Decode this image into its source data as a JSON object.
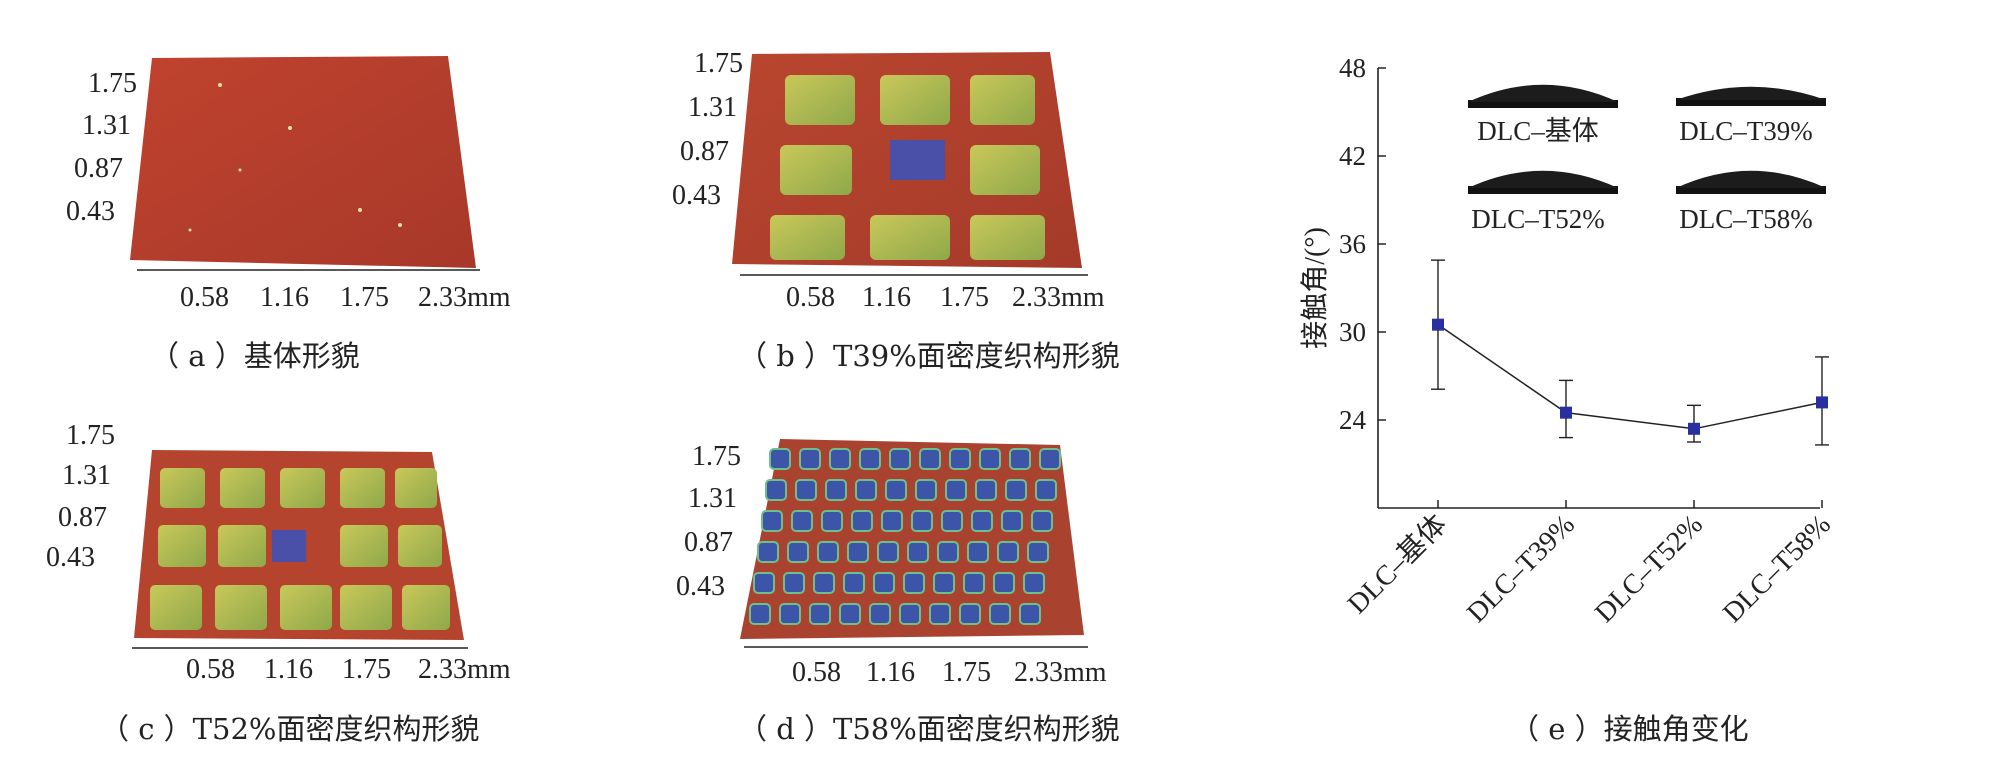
{
  "panels": [
    {
      "id": "a",
      "caption": "（ a ）基体形貌",
      "y_ticks": [
        "1.75",
        "1.31",
        "0.87",
        "0.43"
      ],
      "x_ticks": [
        "0.58",
        "1.16",
        "1.75",
        "2.33mm"
      ]
    },
    {
      "id": "b",
      "caption": "（ b ）T39%面密度织构形貌",
      "y_ticks": [
        "1.75",
        "1.31",
        "0.87",
        "0.43"
      ],
      "x_ticks": [
        "0.58",
        "1.16",
        "1.75",
        "2.33mm"
      ]
    },
    {
      "id": "c",
      "caption": "（ c ）T52%面密度织构形貌",
      "y_ticks": [
        "1.75",
        "1.31",
        "0.87",
        "0.43"
      ],
      "x_ticks": [
        "0.58",
        "1.16",
        "1.75",
        "2.33mm"
      ]
    },
    {
      "id": "d",
      "caption": "（ d ）T58%面密度织构形貌",
      "y_ticks": [
        "1.75",
        "1.31",
        "0.87",
        "0.43"
      ],
      "x_ticks": [
        "0.58",
        "1.16",
        "1.75",
        "2.33mm"
      ]
    }
  ],
  "colors": {
    "substrate": "#b8402f",
    "texture_low": "#9aa84a",
    "texture_high": "#4a4fa8",
    "marker": "#2a2fa0"
  },
  "chart_data": {
    "type": "line",
    "caption": "（ e ）接触角变化",
    "ylabel": "接触角/(°)",
    "ylim": [
      18,
      48
    ],
    "yticks": [
      24,
      30,
      36,
      42,
      48
    ],
    "categories": [
      "DLC–基体",
      "DLC–T39%",
      "DLC–T52%",
      "DLC–T58%"
    ],
    "values": [
      30.5,
      24.5,
      23.4,
      25.2
    ],
    "err_low": [
      26.1,
      22.8,
      22.5,
      22.3
    ],
    "err_high": [
      34.9,
      26.7,
      25.0,
      28.3
    ],
    "droplet_labels": [
      "DLC–基体",
      "DLC–T39%",
      "DLC–T52%",
      "DLC–T58%"
    ]
  }
}
